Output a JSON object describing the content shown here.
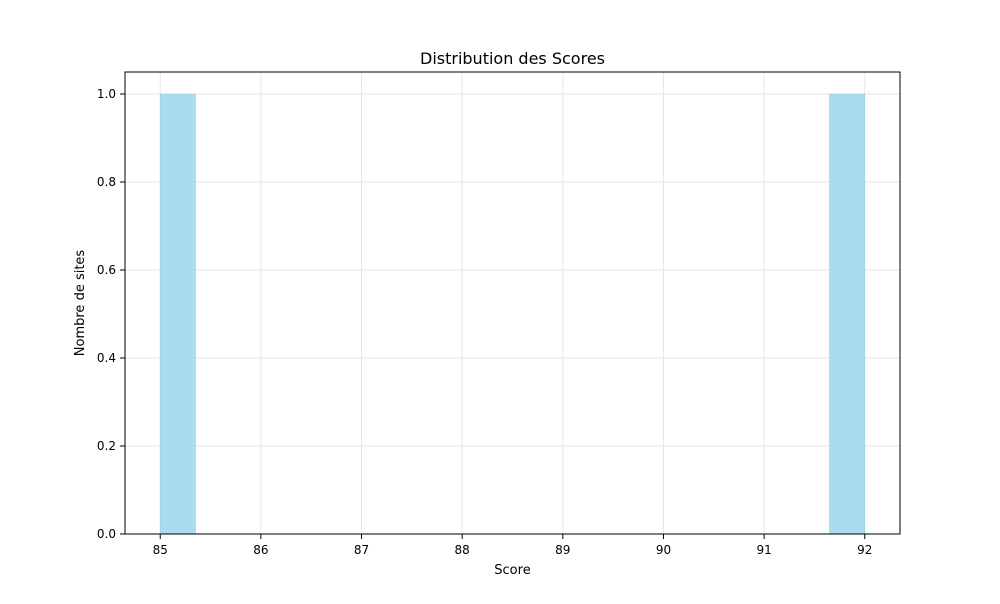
{
  "chart_data": {
    "type": "bar",
    "title": "Distribution des Scores",
    "xlabel": "Score",
    "ylabel": "Nombre de sites",
    "x_ticks": [
      "85",
      "86",
      "87",
      "88",
      "89",
      "90",
      "91",
      "92"
    ],
    "y_ticks": [
      "0.0",
      "0.2",
      "0.4",
      "0.6",
      "0.8",
      "1.0"
    ],
    "xlim": [
      84.65,
      92.35
    ],
    "ylim": [
      0,
      1.05
    ],
    "bins": [
      {
        "start": 85.0,
        "end": 85.35,
        "count": 1
      },
      {
        "start": 91.65,
        "end": 92.0,
        "count": 1
      }
    ],
    "grid": true,
    "colors": {
      "bar_fill": "#a8dcee",
      "bar_stroke": "#9ccfe0",
      "grid": "#e6e6e6",
      "axes": "#000000"
    }
  }
}
